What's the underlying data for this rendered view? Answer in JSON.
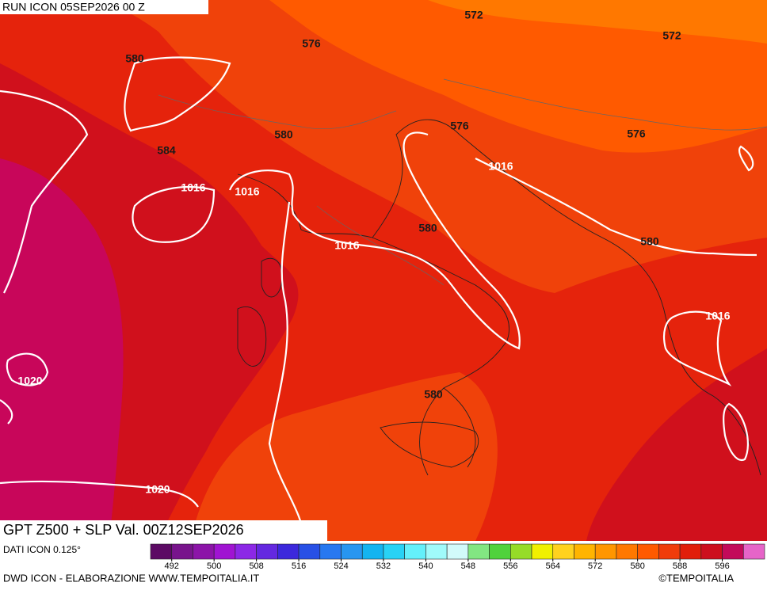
{
  "header": {
    "run": "RUN ICON 05SEP2026 00 Z"
  },
  "title": "GPT Z500 + SLP Val. 00Z12SEP2026",
  "map": {
    "geopotential_labels": [
      572,
      572,
      576,
      580,
      576,
      576,
      580,
      584,
      580,
      580,
      580
    ],
    "pressure_labels": [
      1016,
      1016,
      1016,
      1016,
      1016,
      1020,
      1020
    ]
  },
  "legend": {
    "range": [
      488,
      604
    ],
    "colors": [
      "#5c0a64",
      "#78148c",
      "#8c14a8",
      "#a014d2",
      "#8c28e6",
      "#6428e0",
      "#3c28dc",
      "#2850e6",
      "#2878f0",
      "#2896f0",
      "#14b4f0",
      "#28d2f5",
      "#64f0fa",
      "#a0fafa",
      "#d2fafa",
      "#82e682",
      "#50d23c",
      "#96dc28",
      "#f0f000",
      "#ffd21e",
      "#ffb400",
      "#ff9600",
      "#ff7800",
      "#ff5a00",
      "#f03c0a",
      "#e11e0a",
      "#cd0f1e",
      "#c30a5a",
      "#e664c8"
    ],
    "ticks": [
      492,
      500,
      508,
      516,
      524,
      532,
      540,
      548,
      556,
      564,
      572,
      580,
      588,
      596
    ]
  },
  "footer": {
    "resolution": "DATI ICON 0.125°",
    "credit": "DWD ICON - ELABORAZIONE WWW.TEMPOITALIA.IT",
    "copyright": "©TEMPOITALIA"
  }
}
